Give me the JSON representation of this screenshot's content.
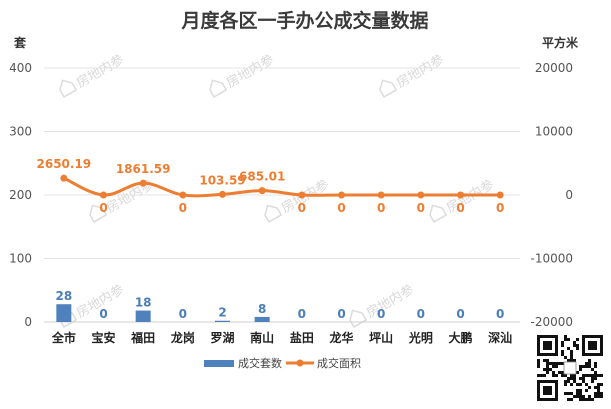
{
  "chart_data": {
    "type": "bar",
    "title": "月度各区一手办公成交量数据",
    "categories": [
      "全市",
      "宝安",
      "福田",
      "龙岗",
      "罗湖",
      "南山",
      "盐田",
      "龙华",
      "坪山",
      "光明",
      "大鹏",
      "深汕"
    ],
    "left_axis": {
      "unit": "套",
      "ylim": [
        0,
        400
      ],
      "ticks": [
        0,
        100,
        200,
        300,
        400
      ]
    },
    "right_axis": {
      "unit": "平方米",
      "ylim": [
        -20000,
        20000
      ],
      "ticks": [
        -20000,
        -10000,
        0,
        10000,
        20000
      ],
      "tick_labels": [
        "-20000",
        "-10000",
        "0",
        "10000",
        "20000"
      ]
    },
    "grid": true,
    "legend_position": "bottom",
    "series": [
      {
        "name": "成交套数",
        "type": "bar",
        "axis": "left",
        "color": "#4f81bd",
        "values": [
          28,
          0,
          18,
          0,
          2,
          8,
          0,
          0,
          0,
          0,
          0,
          0
        ],
        "labels": [
          "28",
          "0",
          "18",
          "0",
          "2",
          "8",
          "0",
          "0",
          "0",
          "0",
          "0",
          "0"
        ]
      },
      {
        "name": "成交面积",
        "type": "line",
        "axis": "right",
        "color": "#ed7d31",
        "values": [
          2650.19,
          0,
          1861.59,
          0,
          103.59,
          685.01,
          0,
          0,
          0,
          0,
          0,
          0
        ],
        "labels": [
          "2650.19",
          "0",
          "1861.59",
          "0",
          "103.59",
          "685.01",
          "0",
          "0",
          "0",
          "0",
          "0",
          "0"
        ]
      }
    ]
  },
  "watermark": {
    "text": "房地内参",
    "icon": "house-logo-icon"
  },
  "qr_code": {
    "icon": "qr-code-icon"
  }
}
